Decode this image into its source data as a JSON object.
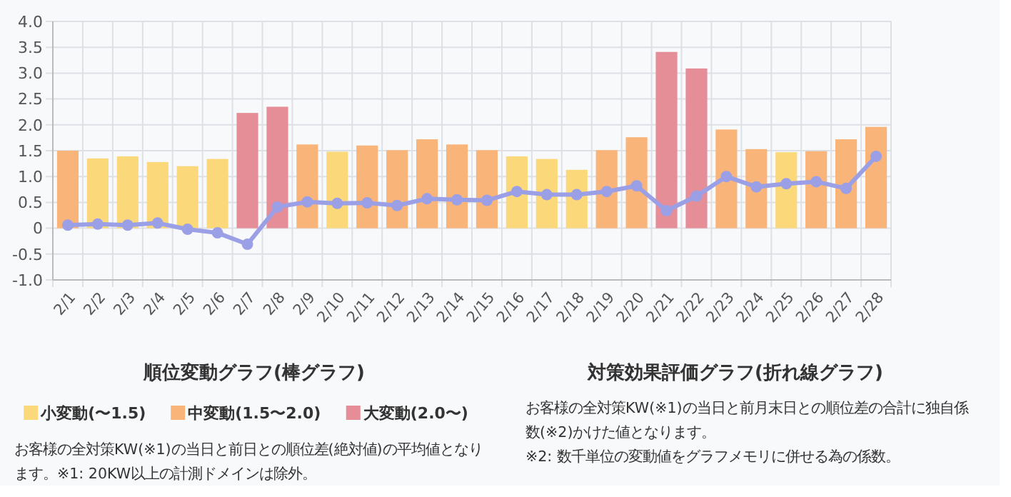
{
  "chart_data": {
    "type": "bar",
    "categories": [
      "2/1",
      "2/2",
      "2/3",
      "2/4",
      "2/5",
      "2/6",
      "2/7",
      "2/8",
      "2/9",
      "2/10",
      "2/11",
      "2/12",
      "2/13",
      "2/14",
      "2/15",
      "2/16",
      "2/17",
      "2/18",
      "2/19",
      "2/20",
      "2/21",
      "2/22",
      "2/23",
      "2/24",
      "2/25",
      "2/26",
      "2/27",
      "2/28"
    ],
    "series": [
      {
        "name": "小変動(〜1.5)",
        "color": "#fbd97a",
        "values": [
          null,
          1.35,
          1.39,
          1.28,
          1.2,
          1.34,
          null,
          null,
          null,
          1.48,
          null,
          null,
          null,
          null,
          null,
          1.39,
          1.34,
          1.13,
          null,
          null,
          null,
          null,
          null,
          null,
          1.47,
          null,
          null,
          null
        ]
      },
      {
        "name": "中変動(1.5〜2.0)",
        "color": "#f9b47a",
        "values": [
          1.5,
          null,
          null,
          null,
          null,
          null,
          null,
          null,
          1.62,
          null,
          1.6,
          1.51,
          1.72,
          1.62,
          1.51,
          null,
          null,
          null,
          1.51,
          1.76,
          null,
          null,
          1.91,
          1.53,
          null,
          1.49,
          1.72,
          1.96
        ]
      },
      {
        "name": "大変動(2.0〜)",
        "color": "#e68e98",
        "values": [
          null,
          null,
          null,
          null,
          null,
          null,
          2.23,
          2.35,
          null,
          null,
          null,
          null,
          null,
          null,
          null,
          null,
          null,
          null,
          null,
          null,
          3.41,
          3.09,
          null,
          null,
          null,
          null,
          null,
          null
        ]
      },
      {
        "type": "line",
        "color": "#9b9fe6",
        "values": [
          0.06,
          0.08,
          0.06,
          0.1,
          -0.02,
          -0.09,
          -0.31,
          0.41,
          0.51,
          0.48,
          0.49,
          0.44,
          0.57,
          0.55,
          0.54,
          0.71,
          0.65,
          0.65,
          0.71,
          0.82,
          0.34,
          0.62,
          1.0,
          0.8,
          0.86,
          0.9,
          0.77,
          1.39
        ]
      }
    ],
    "ylim": [
      -1,
      4
    ],
    "yticks": [
      {
        "value": -1,
        "label": "-1.0"
      },
      {
        "value": -0.5,
        "label": "-0.5"
      },
      0,
      {
        "value": 0.5,
        "label": "0.5"
      },
      {
        "value": 1,
        "label": "1.0"
      },
      {
        "value": 1.5,
        "label": "1.5"
      },
      {
        "value": 2,
        "label": "2.0"
      },
      {
        "value": 2.5,
        "label": "2.5"
      },
      {
        "value": 3,
        "label": "3.0"
      },
      {
        "value": 3.5,
        "label": "3.5"
      },
      {
        "value": 4,
        "label": "4.0"
      }
    ],
    "grid": true,
    "legend": "bottom",
    "marker": "circle",
    "line_style": "solid",
    "annotations": [
      "順位変動グラフ(棒グラフ)",
      "お客様の全対策KW(※1)の当日と前日との順位差(絶対値)の平均値となります。※1: 20KW以上の計測ドメインは除外。",
      "対策効果評価グラフ(折れ線グラフ)",
      "お客様の全対策KW(※1)の当日と前月末日との順位差の合計に独自係数(※2)かけた値となります。",
      "※2: 数千単位の変動値をグラフメモリに併せる為の係数。"
    ]
  }
}
